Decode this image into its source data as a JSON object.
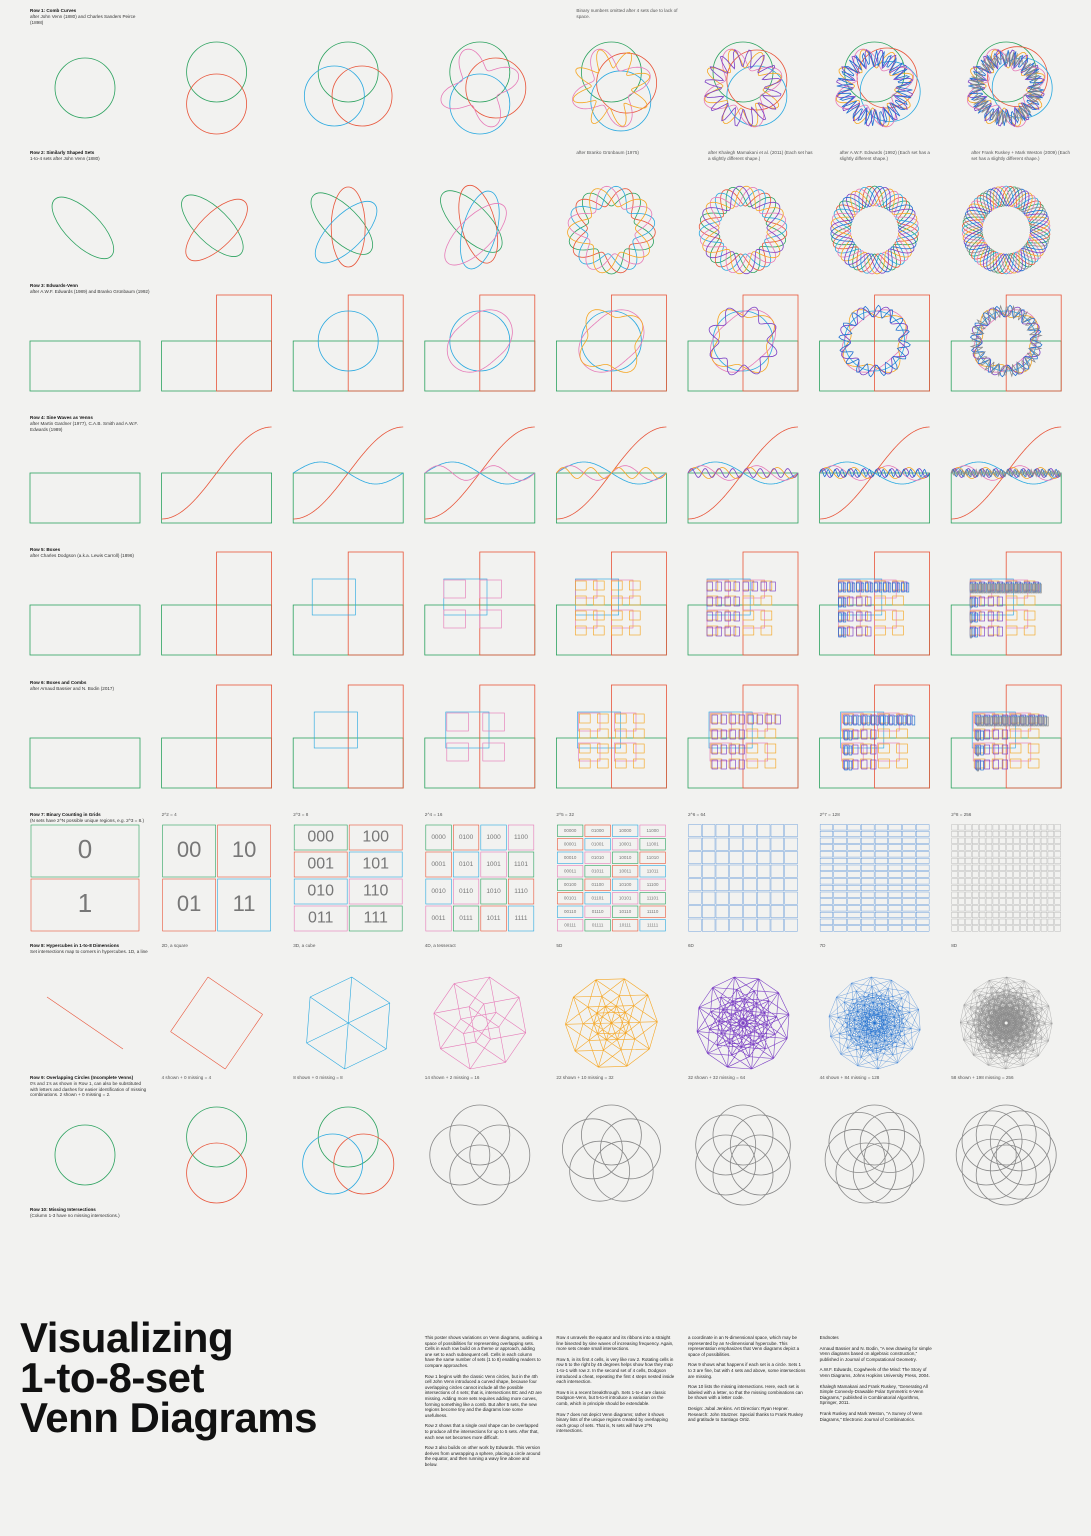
{
  "rows": [
    {
      "title": "Row 1: Comb Curves",
      "subtitle": "after John Venn (1880) and Charles Sanders Peirce (1898)",
      "captions": [
        null,
        null,
        null,
        null,
        "Binary numbers omitted after 4 sets due to lack of space.",
        null,
        null,
        null
      ]
    },
    {
      "title": "Row 2: Similarly Shaped Sets",
      "subtitle": "1-to-4 sets after John Venn (1880)",
      "captions": [
        null,
        null,
        null,
        null,
        "after Branko Grünbaum (1975)",
        "after Khalegh Mamakani et al. (2011) (Each set has a slightly different shape.)",
        "after A.W.F. Edwards (1992) (Each set has a slightly different shape.)",
        "after Frank Ruskey + Mark Weston (2009) (Each set has a slightly different shape.)"
      ]
    },
    {
      "title": "Row 3: Edwards-Venn",
      "subtitle": "after A.W.F. Edwards (1989) and Branko Grünbaum (1992)",
      "captions": [
        null,
        null,
        null,
        null,
        null,
        null,
        null,
        null
      ]
    },
    {
      "title": "Row 4: Sine Waves as Venns",
      "subtitle": "after Martin Gardner (1977), C.A.B. Smith and A.W.F. Edwards (1989)",
      "captions": [
        null,
        null,
        null,
        null,
        null,
        null,
        null,
        null
      ]
    },
    {
      "title": "Row 5: Boxes",
      "subtitle": "after Charles Dodgson (a.k.a. Lewis Carroll) (1896)",
      "captions": [
        null,
        null,
        null,
        null,
        null,
        null,
        null,
        null
      ]
    },
    {
      "title": "Row 6: Boxes and Combs",
      "subtitle": "after Arnaud Bassier and N. Bodin (2017)",
      "captions": [
        null,
        null,
        null,
        null,
        null,
        null,
        null,
        null
      ]
    },
    {
      "title": "Row 7: Binary Counting in Grids",
      "subtitle": "(N sets have 2^N possible unique regions, e.g. 2^3 = 8.)",
      "captions": [
        null,
        "2^2 = 4",
        "2^3 = 8",
        "2^4 = 16",
        "2^5 = 32",
        "2^6 = 64",
        "2^7 = 128",
        "2^8 = 256"
      ]
    },
    {
      "title": "Row 8: Hypercubes in 1-to-8 Dimensions",
      "subtitle": "Set intersections map to corners in hypercubes. 1D, a line",
      "captions": [
        null,
        "2D, a square",
        "3D, a cube",
        "4D, a tesseract",
        "5D",
        "6D",
        "7D",
        "8D"
      ]
    },
    {
      "title": "Row 9: Overlapping Circles (Incomplete Venns)",
      "subtitle": "0's and 1's as shown in Row 1, can also be substituted with letters and dashes for easier identification of missing combinations. 2 shown + 0 missing = 2.",
      "captions": [
        null,
        "4 shown + 0 missing = 4",
        "8 shown + 0 missing = 8",
        "14 shown + 2 missing = 16",
        "22 shown + 10 missing = 32",
        "32 shown + 32 missing = 64",
        "44 shown + 84 missing = 128",
        "58 shown + 198 missing = 256"
      ]
    },
    {
      "title": "Row 10: Missing Intersections",
      "subtitle": "(Column 1-3 have no missing intersections.)",
      "captions": [
        null,
        null,
        null,
        null,
        null,
        null,
        null,
        null
      ]
    }
  ],
  "binary_grids": [
    [
      "0",
      "1"
    ],
    [
      "00",
      "10",
      "01",
      "11"
    ],
    [
      "000",
      "100",
      "001",
      "101",
      "010",
      "110",
      "011",
      "111"
    ],
    [
      "0000",
      "0100",
      "1000",
      "1100",
      "0001",
      "0101",
      "1001",
      "1101",
      "0010",
      "0110",
      "1010",
      "1110",
      "0011",
      "0111",
      "1011",
      "1111"
    ],
    [
      "00000",
      "01000",
      "10000",
      "11000",
      "00001",
      "01001",
      "10001",
      "11001",
      "00010",
      "01010",
      "10010",
      "11010",
      "00011",
      "01011",
      "10011",
      "11011",
      "00100",
      "01100",
      "10100",
      "11100",
      "00101",
      "01101",
      "10101",
      "11101",
      "00110",
      "01110",
      "10110",
      "11110",
      "00111",
      "01111",
      "10111",
      "11111"
    ]
  ],
  "title_lines": [
    "Visualizing",
    "1-to-8-set",
    "Venn Diagrams"
  ],
  "text_columns": [
    [
      "This poster shows variations on Venn diagrams, outlining a space of possibilities for representing overlapping sets. Cells in each row build on a theme or approach, adding one set to each subsequent cell. Cells in each column have the same number of sets (1 to 8) enabling readers to compare approaches.",
      "Row 1 begins with the classic Venn circles, but in the 4th cell John Venn introduced a curved shape, because four overlapping circles cannot include all the possible intersections of 4 sets; that is, intersections BC and AD are missing. Adding more sets requires adding more curves, forming something like a comb. But after 5 sets, the new regions become tiny and the diagrams lose some usefulness.",
      "Row 2 shows that a single oval shape can be overlapped to produce all the intersections for up to 5 sets. After that, each new set becomes more difficult.",
      "Row 3 also builds on other work by Edwards. This version derives from unwrapping a sphere, placing a circle around the equator, and then running a wavy line above and below."
    ],
    [
      "Row 4 unravels the equator and its ribbons into a straight line bisected by sine waves of increasing frequency. Again, more sets create small intersections.",
      "Row 5, in its first 4 cells, is very like row 2. Rotating cells in row 5 to the right by 45 degrees helps show how they map 1-to-1 with row 2. In the second set of 4 cells, Dodgson introduced a cheat, repeating the first 4 steps nested inside each intersection.",
      "Row 6 is a recent breakthrough. Sets 1-to-4 are classic Dodgson-Venn, but 5-to-8 introduce a variation on the comb, which in principle should be extendable.",
      "Row 7 does not depict Venn diagrams; rather it shows binary lists of the unique regions created by overlapping each group of sets. That is, N sets will have 2^N intersections."
    ],
    [
      "a coordinate in an N-dimensional space, which may be represented by an N-dimensional hypercube. This representation emphasizes that Venn diagrams depict a space of possibilities.",
      "Row 9 shows what happens if each set is a circle. Sets 1 to 3 are fine, but with 4 sets and above, some intersections are missing.",
      "Row 10 lists the missing intersections. Here, each set is labeled with a letter, so that the missing combinations can be shown with a letter code.",
      "Design: Jubal Jenkins. Art Direction: Ryan Hepner. Research: John Stutzner. Special thanks to Frank Ruskey and gratitude to Santiago Ortiz."
    ],
    [
      "Endnotes",
      "Arnaud Bassier and N. Bodin, \"A new drawing for simple Venn diagrams based on algebraic construction,\" published in Journal of Computational Geometry.",
      "A.W.F. Edwards, Cogwheels of the Mind: The Story of Venn Diagrams, Johns Hopkins University Press, 2004.",
      "Khalegh Mamakani and Frank Ruskey, \"Generating All Simple Convexly-Drawable Polar Symmetric 6-Venn Diagrams,\" published in Combinatorial Algorithms, Springer, 2011.",
      "Frank Ruskey and Mark Weston, \"A Survey of Venn Diagrams,\" Electronic Journal of Combinatorics."
    ]
  ]
}
